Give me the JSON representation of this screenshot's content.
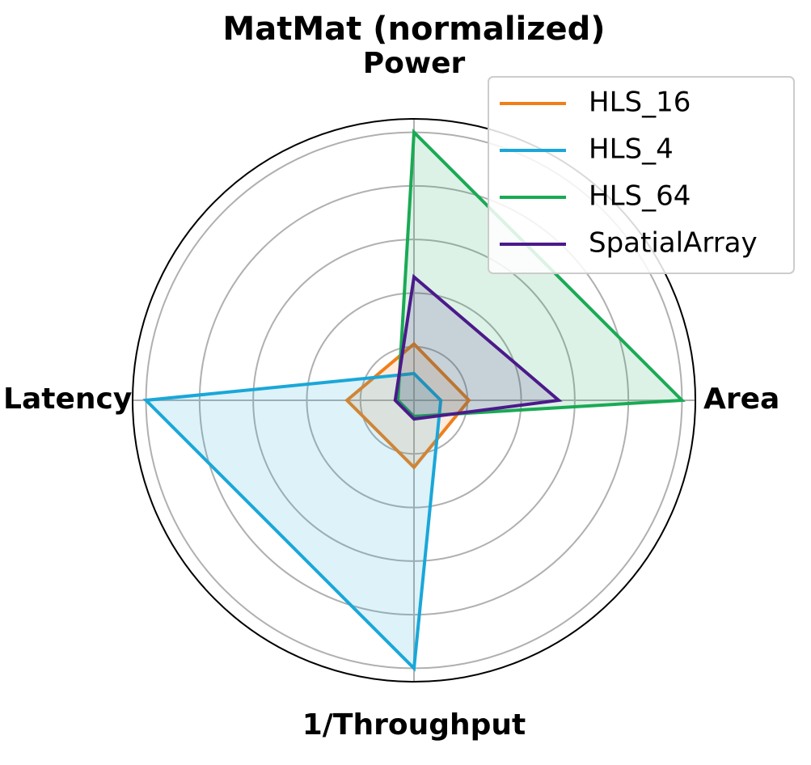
{
  "chart_data": {
    "type": "radar",
    "title": "MatMat (normalized)",
    "categories": [
      "Area",
      "Power",
      "Latency",
      "1/Throughput"
    ],
    "series": [
      {
        "name": "HLS_16",
        "color": "#f07f1a",
        "values": [
          0.205,
          0.21,
          0.25,
          0.25
        ]
      },
      {
        "name": "HLS_4",
        "color": "#1aa7d8",
        "values": [
          0.1,
          0.1,
          1.0,
          1.0
        ]
      },
      {
        "name": "HLS_64",
        "color": "#1aaa55",
        "values": [
          1.0,
          1.0,
          0.06,
          0.06
        ]
      },
      {
        "name": "SpatialArray",
        "color": "#4b1a8a",
        "values": [
          0.54,
          0.46,
          0.07,
          0.07
        ]
      }
    ],
    "ylim": [
      0,
      1.05
    ],
    "yticks": [
      0.2,
      0.4,
      0.6,
      0.8,
      1.0
    ],
    "grid": true,
    "legend": "upper right"
  }
}
